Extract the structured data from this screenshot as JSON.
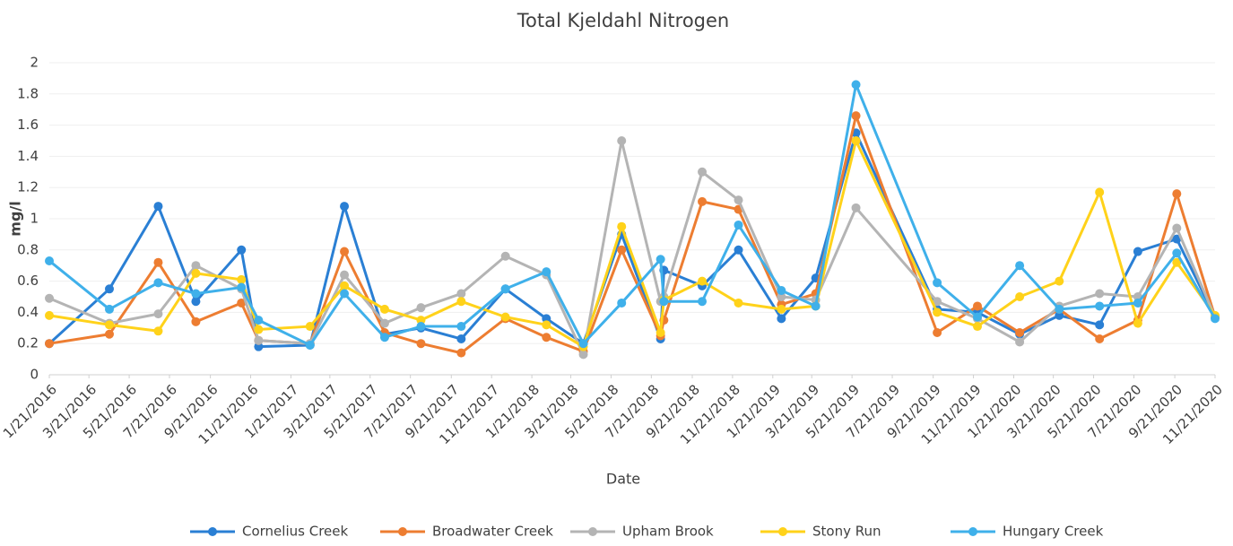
{
  "chart_data": {
    "type": "line",
    "title": "Total Kjeldahl Nitrogen",
    "x_label": "Date",
    "y_label": "mg/l",
    "x": [
      "1/21/2016",
      "4/21/2016",
      "7/4/2016",
      "8/30/2016",
      "11/7/2016",
      "12/3/2016",
      "2/19/2017",
      "4/12/2017",
      "6/12/2017",
      "8/6/2017",
      "10/6/2017",
      "12/12/2017",
      "2/12/2018",
      "4/9/2018",
      "6/6/2018",
      "8/4/2018",
      "8/9/2018",
      "10/6/2018",
      "11/30/2018",
      "2/3/2019",
      "3/27/2019",
      "5/27/2019",
      "9/27/2019",
      "11/27/2019",
      "1/30/2020",
      "3/30/2020",
      "5/30/2020",
      "7/27/2020",
      "9/24/2020",
      "11/21/2020"
    ],
    "series": [
      {
        "name": "Cornelius Creek",
        "color": "#2a7fd4",
        "values": [
          0.2,
          0.55,
          1.08,
          0.47,
          0.8,
          0.18,
          0.19,
          1.08,
          0.26,
          0.3,
          0.23,
          0.55,
          0.36,
          0.2,
          0.9,
          0.23,
          0.67,
          0.57,
          0.8,
          0.36,
          0.62,
          1.55,
          0.42,
          0.4,
          0.26,
          0.38,
          0.32,
          0.79,
          0.87,
          0.37
        ]
      },
      {
        "name": "Broadwater Creek",
        "color": "#ed7d31",
        "values": [
          0.2,
          0.26,
          0.72,
          0.34,
          0.46,
          0.22,
          0.2,
          0.79,
          0.27,
          0.2,
          0.14,
          0.36,
          0.24,
          0.15,
          0.8,
          0.25,
          0.35,
          1.11,
          1.06,
          0.45,
          0.52,
          1.66,
          0.27,
          0.44,
          0.27,
          0.42,
          0.23,
          0.35,
          1.16,
          0.37
        ]
      },
      {
        "name": "Upham Brook",
        "color": "#b4b4b4",
        "values": [
          0.49,
          0.33,
          0.39,
          0.7,
          0.55,
          0.22,
          0.2,
          0.64,
          0.33,
          0.43,
          0.52,
          0.76,
          0.64,
          0.13,
          1.5,
          0.47,
          0.5,
          1.3,
          1.12,
          0.5,
          0.48,
          1.07,
          0.47,
          0.36,
          0.21,
          0.44,
          0.52,
          0.5,
          0.94,
          0.37
        ]
      },
      {
        "name": "Stony Run",
        "color": "#ffd21a",
        "values": [
          0.38,
          0.32,
          0.28,
          0.65,
          0.61,
          0.29,
          0.31,
          0.57,
          0.42,
          0.35,
          0.47,
          0.37,
          0.32,
          0.18,
          0.95,
          0.27,
          0.48,
          0.6,
          0.46,
          0.42,
          0.44,
          1.5,
          0.4,
          0.31,
          0.5,
          0.6,
          1.17,
          0.33,
          0.72,
          0.38
        ]
      },
      {
        "name": "Hungary Creek",
        "color": "#3fb0ea",
        "values": [
          0.73,
          0.42,
          0.59,
          0.52,
          0.56,
          0.35,
          0.19,
          0.52,
          0.24,
          0.31,
          0.31,
          0.55,
          0.66,
          0.2,
          0.46,
          0.74,
          0.47,
          0.47,
          0.96,
          0.54,
          0.44,
          1.86,
          0.59,
          0.37,
          0.7,
          0.42,
          0.44,
          0.46,
          0.78,
          0.36
        ]
      }
    ],
    "xlim": [
      "1/21/2016",
      "11/21/2020"
    ],
    "xticks": [
      "1/21/2016",
      "3/21/2016",
      "5/21/2016",
      "7/21/2016",
      "9/21/2016",
      "11/21/2016",
      "1/21/2017",
      "3/21/2017",
      "5/21/2017",
      "7/21/2017",
      "9/21/2017",
      "11/21/2017",
      "1/21/2018",
      "3/21/2018",
      "5/21/2018",
      "7/21/2018",
      "9/21/2018",
      "11/21/2018",
      "1/21/2019",
      "3/21/2019",
      "5/21/2019",
      "7/21/2019",
      "9/21/2019",
      "11/21/2019",
      "1/21/2020",
      "3/21/2020",
      "5/21/2020",
      "7/21/2020",
      "9/21/2020",
      "11/21/2020"
    ],
    "ylim": [
      0,
      2
    ],
    "yticks": [
      0,
      0.2,
      0.4,
      0.6,
      0.8,
      1,
      1.2,
      1.4,
      1.6,
      1.8,
      2
    ],
    "grid": true,
    "legend": "bottom"
  }
}
